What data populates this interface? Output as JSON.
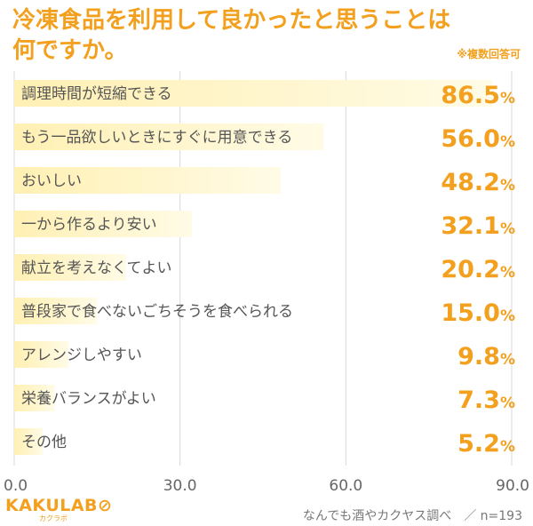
{
  "title_lines": [
    "冷凍食品を利用して良かったと思うことは",
    "何ですか。"
  ],
  "note": "※複数回答可",
  "chart_data": {
    "type": "bar",
    "orientation": "horizontal",
    "categories": [
      "調理時間が短縮できる",
      "もう一品欲しいときにすぐに用意できる",
      "おいしい",
      "一から作るより安い",
      "献立を考えなくてよい",
      "普段家で食べないごちそうを食べられる",
      "アレンジしやすい",
      "栄養バランスがよい",
      "その他"
    ],
    "values": [
      86.5,
      56.0,
      48.2,
      32.1,
      20.2,
      15.0,
      9.8,
      7.3,
      5.2
    ],
    "value_labels": [
      "86.5",
      "56.0",
      "48.2",
      "32.1",
      "20.2",
      "15.0",
      "9.8",
      "7.3",
      "5.2"
    ],
    "unit": "%",
    "xlim": [
      0,
      90
    ],
    "xticks": [
      "0.0",
      "30.0",
      "60.0",
      "90.0"
    ],
    "grid": true,
    "colors": {
      "bar": "#fff0b3",
      "bar_edge": "#fffbe6",
      "accent": "#f2a01e",
      "label": "#555555",
      "grid": "#d9d9d9"
    }
  },
  "logo": {
    "text": "KAKULAB",
    "sub": "カクラボ"
  },
  "source": "なんでも酒やカクヤス調べ　／ n=193"
}
